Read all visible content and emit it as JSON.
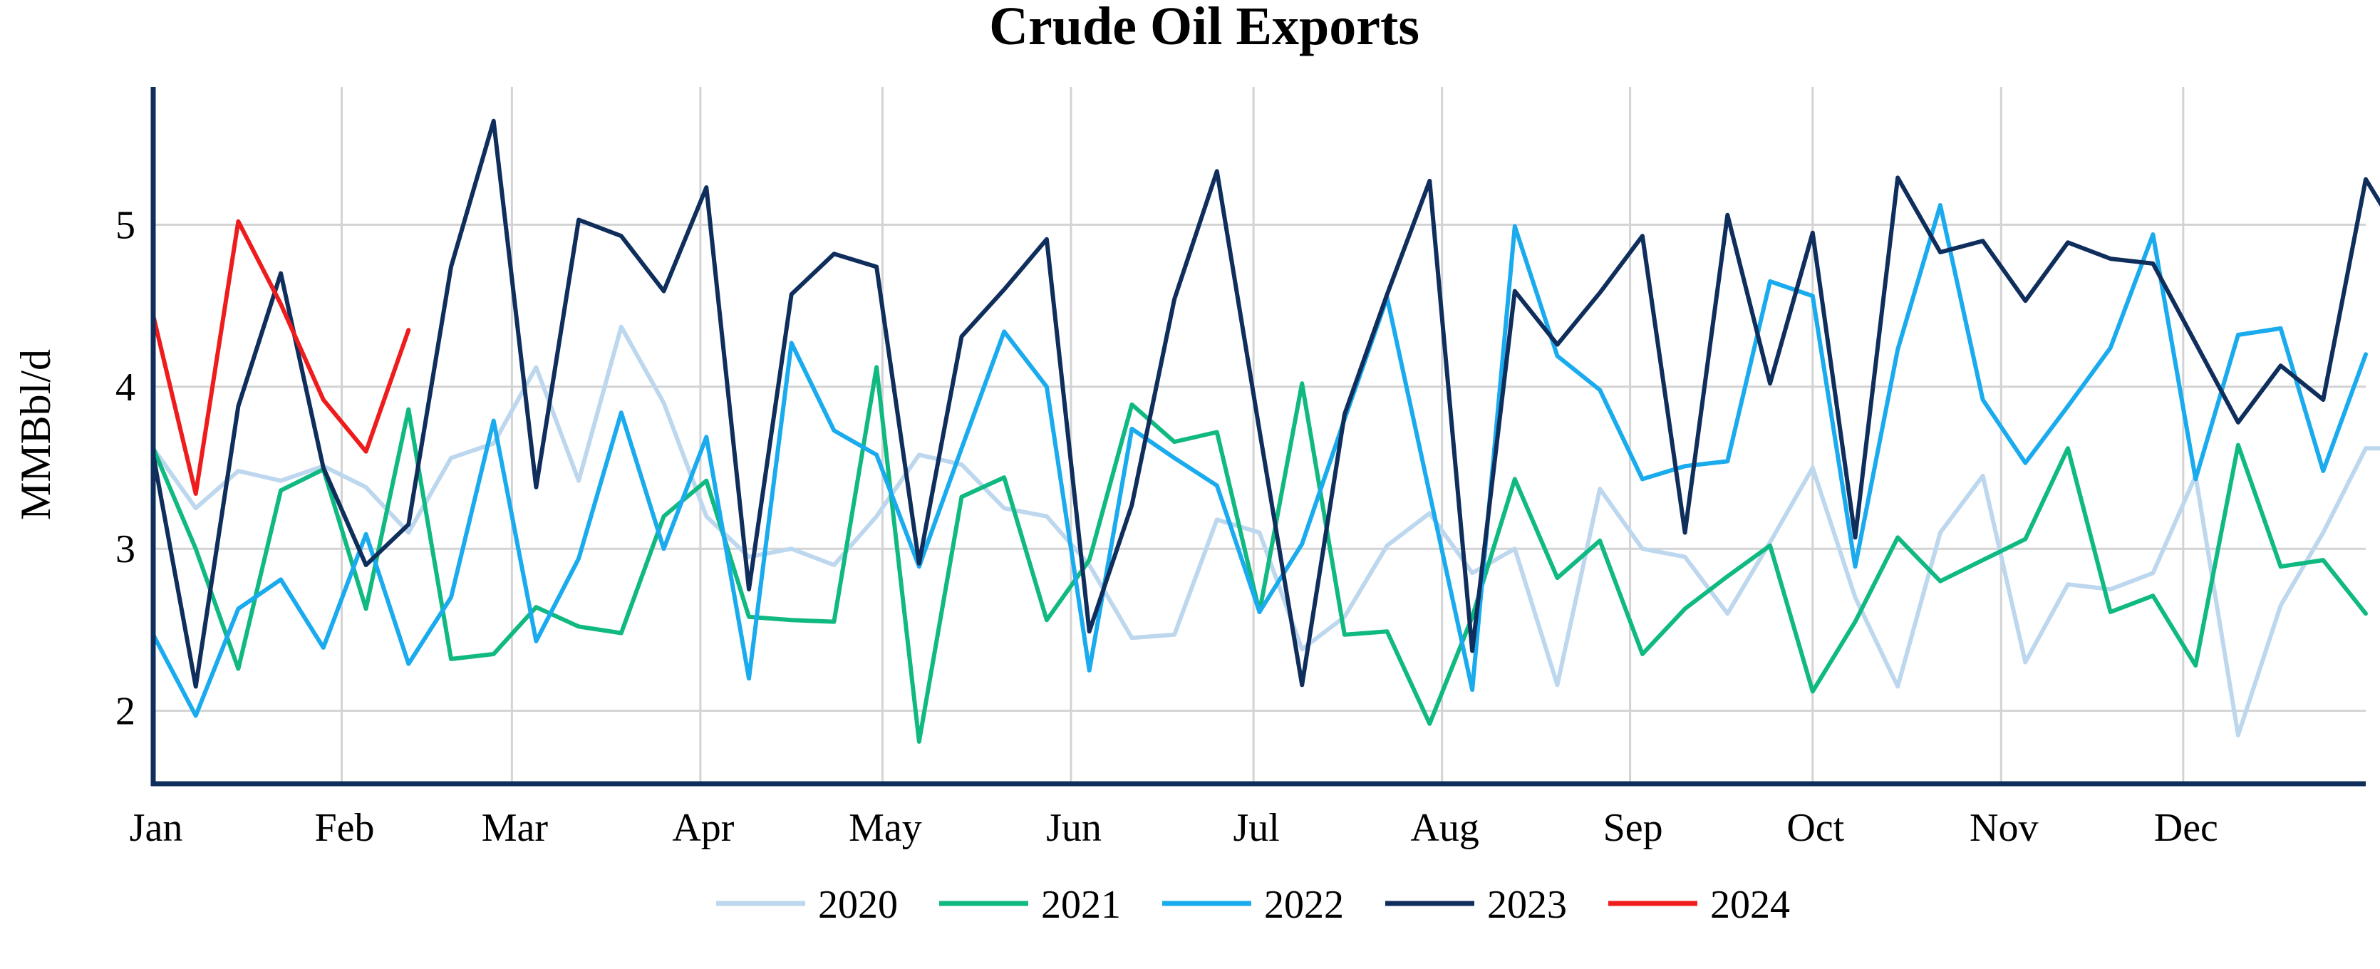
{
  "chart_data": {
    "type": "line",
    "title": "Crude Oil Exports",
    "xlabel": "",
    "ylabel": "MMBbl/d",
    "ylim": [
      1.55,
      5.85
    ],
    "yticks": [
      2,
      3,
      4,
      5
    ],
    "ytick_labels": [
      "2",
      "3",
      "4",
      "5"
    ],
    "xlim": [
      1,
      53
    ],
    "x_unit": "week of year",
    "xticks": [
      1,
      5.43,
      9.43,
      13.86,
      18.14,
      22.57,
      26.86,
      31.29,
      35.71,
      40,
      44.43,
      48.71
    ],
    "xtick_labels": [
      "Jan",
      "Feb",
      "Mar",
      "Apr",
      "May",
      "Jun",
      "Jul",
      "Aug",
      "Sep",
      "Oct",
      "Nov",
      "Dec"
    ],
    "grid": true,
    "legend_position": "bottom-center",
    "series": [
      {
        "name": "2020",
        "color": "#bdd7ee",
        "values": [
          3.62,
          3.25,
          3.48,
          3.42,
          3.51,
          3.38,
          3.1,
          3.56,
          3.65,
          4.12,
          3.42,
          4.37,
          3.9,
          3.2,
          2.95,
          3.0,
          2.9,
          3.2,
          3.58,
          3.52,
          3.25,
          3.2,
          2.9,
          2.45,
          2.47,
          3.18,
          3.1,
          2.38,
          2.58,
          3.02,
          3.22,
          2.85,
          3.0,
          2.16,
          3.37,
          3.0,
          2.95,
          2.6,
          3.04,
          3.5,
          2.7,
          2.15,
          3.1,
          3.45,
          2.3,
          2.78,
          2.75,
          2.85,
          3.45,
          1.85,
          2.65,
          3.1,
          3.62,
          3.62
        ]
      },
      {
        "name": "2021",
        "color": "#10b981",
        "values": [
          3.62,
          3.0,
          2.26,
          3.36,
          3.49,
          2.63,
          3.86,
          2.32,
          2.35,
          2.64,
          2.52,
          2.48,
          3.2,
          3.42,
          2.58,
          2.56,
          2.55,
          4.12,
          1.81,
          3.32,
          3.44,
          2.56,
          2.93,
          3.89,
          3.66,
          3.72,
          2.61,
          4.02,
          2.47,
          2.49,
          1.92,
          2.58,
          3.43,
          2.82,
          3.05,
          2.35,
          2.63,
          2.83,
          3.02,
          2.12,
          2.55,
          3.07,
          2.8,
          2.93,
          3.06,
          3.62,
          2.61,
          2.71,
          2.28,
          3.64,
          2.89,
          2.93,
          2.6
        ]
      },
      {
        "name": "2022",
        "color": "#1aabee",
        "values": [
          2.47,
          1.97,
          2.63,
          2.81,
          2.39,
          3.09,
          2.29,
          2.7,
          3.79,
          2.43,
          2.94,
          3.84,
          3.0,
          3.69,
          2.2,
          4.27,
          3.73,
          3.58,
          2.89,
          3.62,
          4.34,
          4.0,
          2.25,
          3.74,
          3.56,
          3.39,
          2.61,
          3.03,
          3.8,
          4.55,
          3.34,
          2.13,
          4.99,
          4.19,
          3.98,
          3.43,
          3.51,
          3.54,
          4.65,
          4.56,
          2.89,
          4.23,
          5.12,
          3.92,
          3.53,
          3.88,
          4.24,
          4.94,
          3.43,
          4.32,
          4.36,
          3.48,
          4.2
        ]
      },
      {
        "name": "2023",
        "color": "#0f2e5c",
        "values": [
          3.58,
          2.15,
          3.88,
          4.7,
          3.5,
          2.9,
          3.15,
          4.74,
          5.64,
          3.38,
          5.03,
          4.93,
          4.59,
          5.23,
          2.75,
          4.57,
          4.82,
          4.74,
          2.91,
          4.31,
          4.6,
          4.91,
          2.49,
          3.27,
          4.54,
          5.33,
          3.73,
          2.16,
          3.83,
          4.57,
          5.27,
          2.37,
          4.59,
          4.26,
          4.58,
          4.93,
          3.1,
          5.06,
          4.02,
          4.95,
          3.07,
          5.29,
          4.83,
          4.9,
          4.53,
          4.89,
          4.79,
          4.76,
          4.27,
          3.78,
          4.13,
          3.92,
          5.28,
          4.85
        ]
      },
      {
        "name": "2024",
        "color": "#ee1c1c",
        "values": [
          4.44,
          3.34,
          5.02,
          4.51,
          3.92,
          3.6,
          4.35
        ]
      }
    ]
  }
}
